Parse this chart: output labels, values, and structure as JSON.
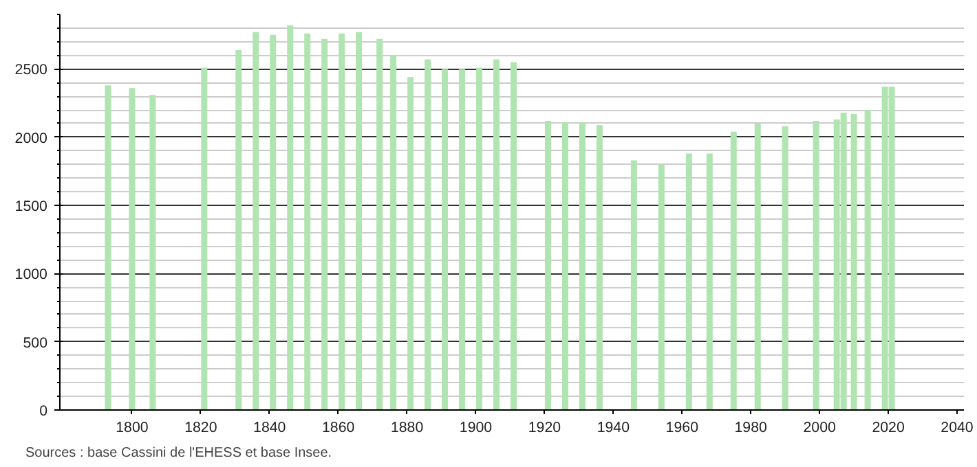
{
  "chart_data": {
    "type": "bar",
    "x": [
      1793,
      1800,
      1806,
      1821,
      1831,
      1836,
      1841,
      1846,
      1851,
      1856,
      1861,
      1866,
      1872,
      1876,
      1881,
      1886,
      1891,
      1896,
      1901,
      1906,
      1911,
      1921,
      1926,
      1931,
      1936,
      1946,
      1954,
      1962,
      1968,
      1975,
      1982,
      1990,
      1999,
      2005,
      2007,
      2010,
      2014,
      2019,
      2021
    ],
    "values": [
      2380,
      2360,
      2310,
      2510,
      2640,
      2770,
      2750,
      2820,
      2760,
      2720,
      2760,
      2770,
      2720,
      2600,
      2440,
      2570,
      2500,
      2500,
      2510,
      2570,
      2550,
      2120,
      2110,
      2110,
      2090,
      1830,
      1800,
      1880,
      1880,
      2040,
      2100,
      2080,
      2120,
      2130,
      2180,
      2170,
      2200,
      2370,
      2370
    ],
    "color": "#b0e4b0",
    "xlim": [
      1779,
      2042
    ],
    "ylim": [
      0,
      2900
    ],
    "xticks": [
      1800,
      1820,
      1840,
      1860,
      1880,
      1900,
      1920,
      1940,
      1960,
      1980,
      2000,
      2020,
      2040
    ],
    "yticks": [
      0,
      500,
      1000,
      1500,
      2000,
      2500
    ],
    "grid": "y",
    "annotations": [
      "Sources : base Cassini de l'EHESS et base Insee."
    ]
  }
}
